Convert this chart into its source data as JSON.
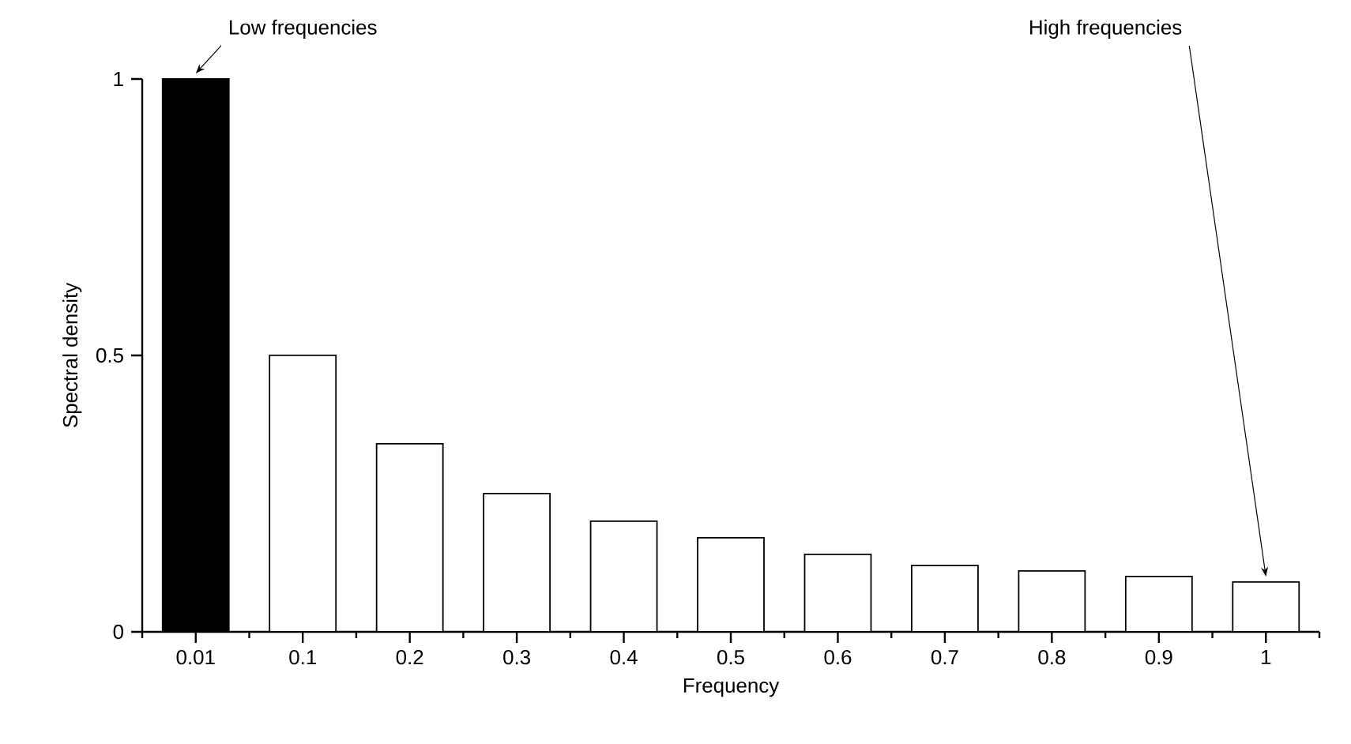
{
  "chart_data": {
    "type": "bar",
    "xlabel": "Frequency",
    "ylabel": "Spectral density",
    "categories": [
      "0.01",
      "0.1",
      "0.2",
      "0.3",
      "0.4",
      "0.5",
      "0.6",
      "0.7",
      "0.8",
      "0.9",
      "1"
    ],
    "values": [
      1,
      0.5,
      0.34,
      0.25,
      0.2,
      0.17,
      0.14,
      0.12,
      0.11,
      0.1,
      0.09
    ],
    "colors": [
      "#000000",
      "#ffffff",
      "#ffffff",
      "#ffffff",
      "#ffffff",
      "#ffffff",
      "#ffffff",
      "#ffffff",
      "#ffffff",
      "#ffffff",
      "#ffffff"
    ],
    "ylim": [
      0,
      1
    ],
    "yticks": [
      0,
      0.5,
      1
    ],
    "grid": false,
    "annotations": [
      {
        "text": "Low frequencies",
        "x": "0.01",
        "y": 1
      },
      {
        "text": "High frequencies",
        "x": "1",
        "y": 0.09
      }
    ]
  }
}
